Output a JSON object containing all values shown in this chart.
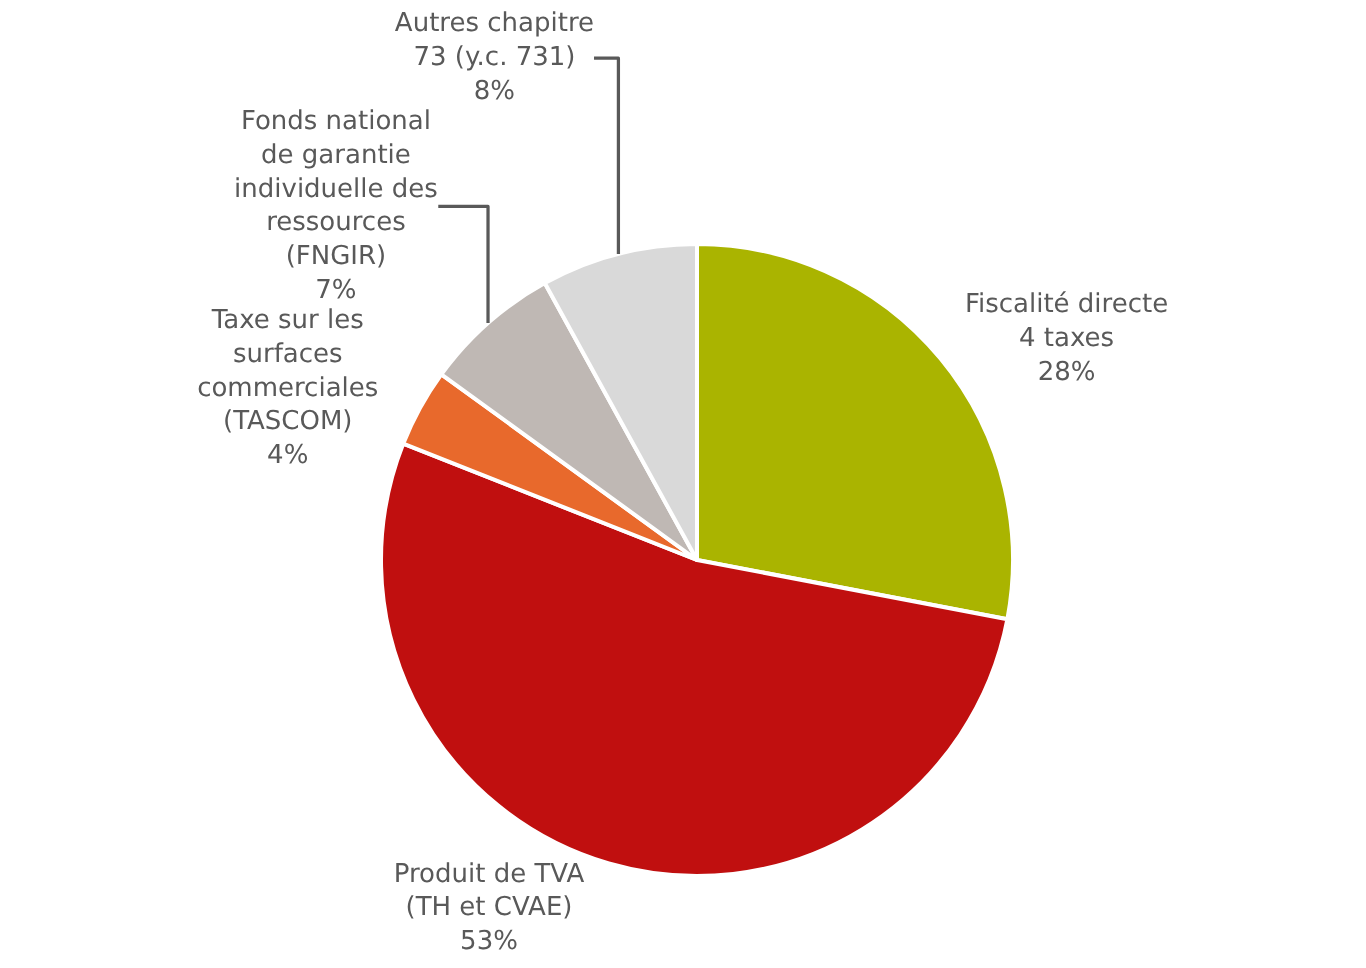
{
  "chart_data": {
    "type": "pie",
    "categories": [
      "Fiscalité directe\n4 taxes",
      "Produit de TVA\n(TH et CVAE)",
      "Taxe sur les\nsurfaces\ncommerciales\n(TASCOM)",
      "Fonds national\nde garantie\nindividuelle des\nressources\n(FNGIR)",
      "Autres chapitre\n73 (y.c. 731)"
    ],
    "values": [
      28,
      53,
      4,
      7,
      8
    ],
    "value_labels": [
      "28%",
      "53%",
      "4%",
      "7%",
      "8%"
    ],
    "colors": [
      "#aab400",
      "#c00f0f",
      "#e8692c",
      "#bfb8b4",
      "#d9d9d9"
    ],
    "legend": false
  }
}
